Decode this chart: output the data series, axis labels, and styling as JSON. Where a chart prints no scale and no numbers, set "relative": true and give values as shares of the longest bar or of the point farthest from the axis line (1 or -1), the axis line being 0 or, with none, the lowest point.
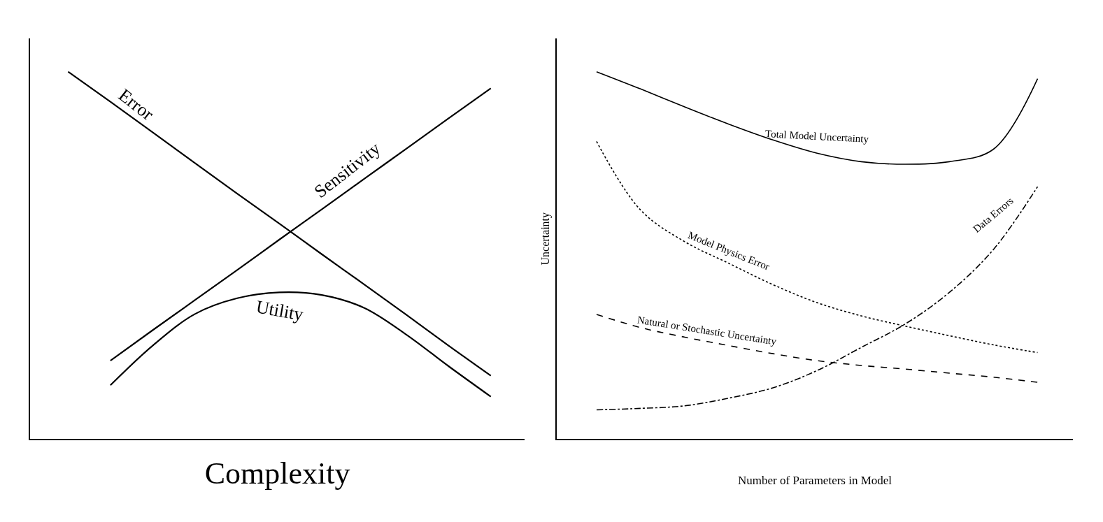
{
  "chart_data": [
    {
      "type": "line",
      "relative": true,
      "xlabel": "Complexity",
      "categories": [
        null,
        null,
        null,
        null,
        null,
        null,
        null,
        null,
        null,
        null,
        null
      ],
      "series": [
        {
          "name": "Error",
          "color": "#000000",
          "line_style": "solid",
          "values": [
            1,
            0.918,
            0.835,
            0.751,
            0.668,
            0.586,
            0.503,
            0.421,
            0.338,
            0.254,
            0.172
          ]
        },
        {
          "name": "Sensitivity",
          "color": "#000000",
          "line_style": "solid",
          "values": [
            null,
            0.213,
            0.296,
            0.378,
            0.46,
            0.543,
            0.625,
            0.708,
            0.79,
            0.873,
            0.955
          ]
        },
        {
          "name": "Utility",
          "color": "#000000",
          "line_style": "solid",
          "values": [
            null,
            0.146,
            0.254,
            0.34,
            0.383,
            0.399,
            0.392,
            0.357,
            0.284,
            0.198,
            0.115
          ]
        }
      ],
      "legend": false
    },
    {
      "type": "line",
      "relative": true,
      "xlabel": "Number of Parameters in Model",
      "ylabel": "Uncertainty",
      "categories": [
        null,
        null,
        null,
        null,
        null,
        null,
        null,
        null,
        null,
        null,
        null
      ],
      "series": [
        {
          "name": "Total Model Uncertainty",
          "color": "#000000",
          "line_style": "solid",
          "values": [
            1,
            0.953,
            0.904,
            0.857,
            0.814,
            0.778,
            0.755,
            0.748,
            0.755,
            0.789,
            0.981
          ]
        },
        {
          "name": "Model Physics Error",
          "color": "#000000",
          "line_style": "dotted",
          "values": [
            0.81,
            0.623,
            0.537,
            0.478,
            0.42,
            0.371,
            0.335,
            0.307,
            0.281,
            0.256,
            0.235
          ]
        },
        {
          "name": "Natural or Stochastic Uncertainty",
          "color": "#000000",
          "line_style": "dashed",
          "values": [
            0.339,
            0.303,
            0.277,
            0.254,
            0.232,
            0.213,
            0.2,
            0.19,
            0.179,
            0.168,
            0.154
          ]
        },
        {
          "name": "Data Errors",
          "color": "#000000",
          "line_style": "dashdot",
          "values": [
            0.079,
            0.083,
            0.09,
            0.111,
            0.139,
            0.186,
            0.249,
            0.313,
            0.399,
            0.516,
            0.687
          ]
        }
      ],
      "legend": false
    }
  ]
}
